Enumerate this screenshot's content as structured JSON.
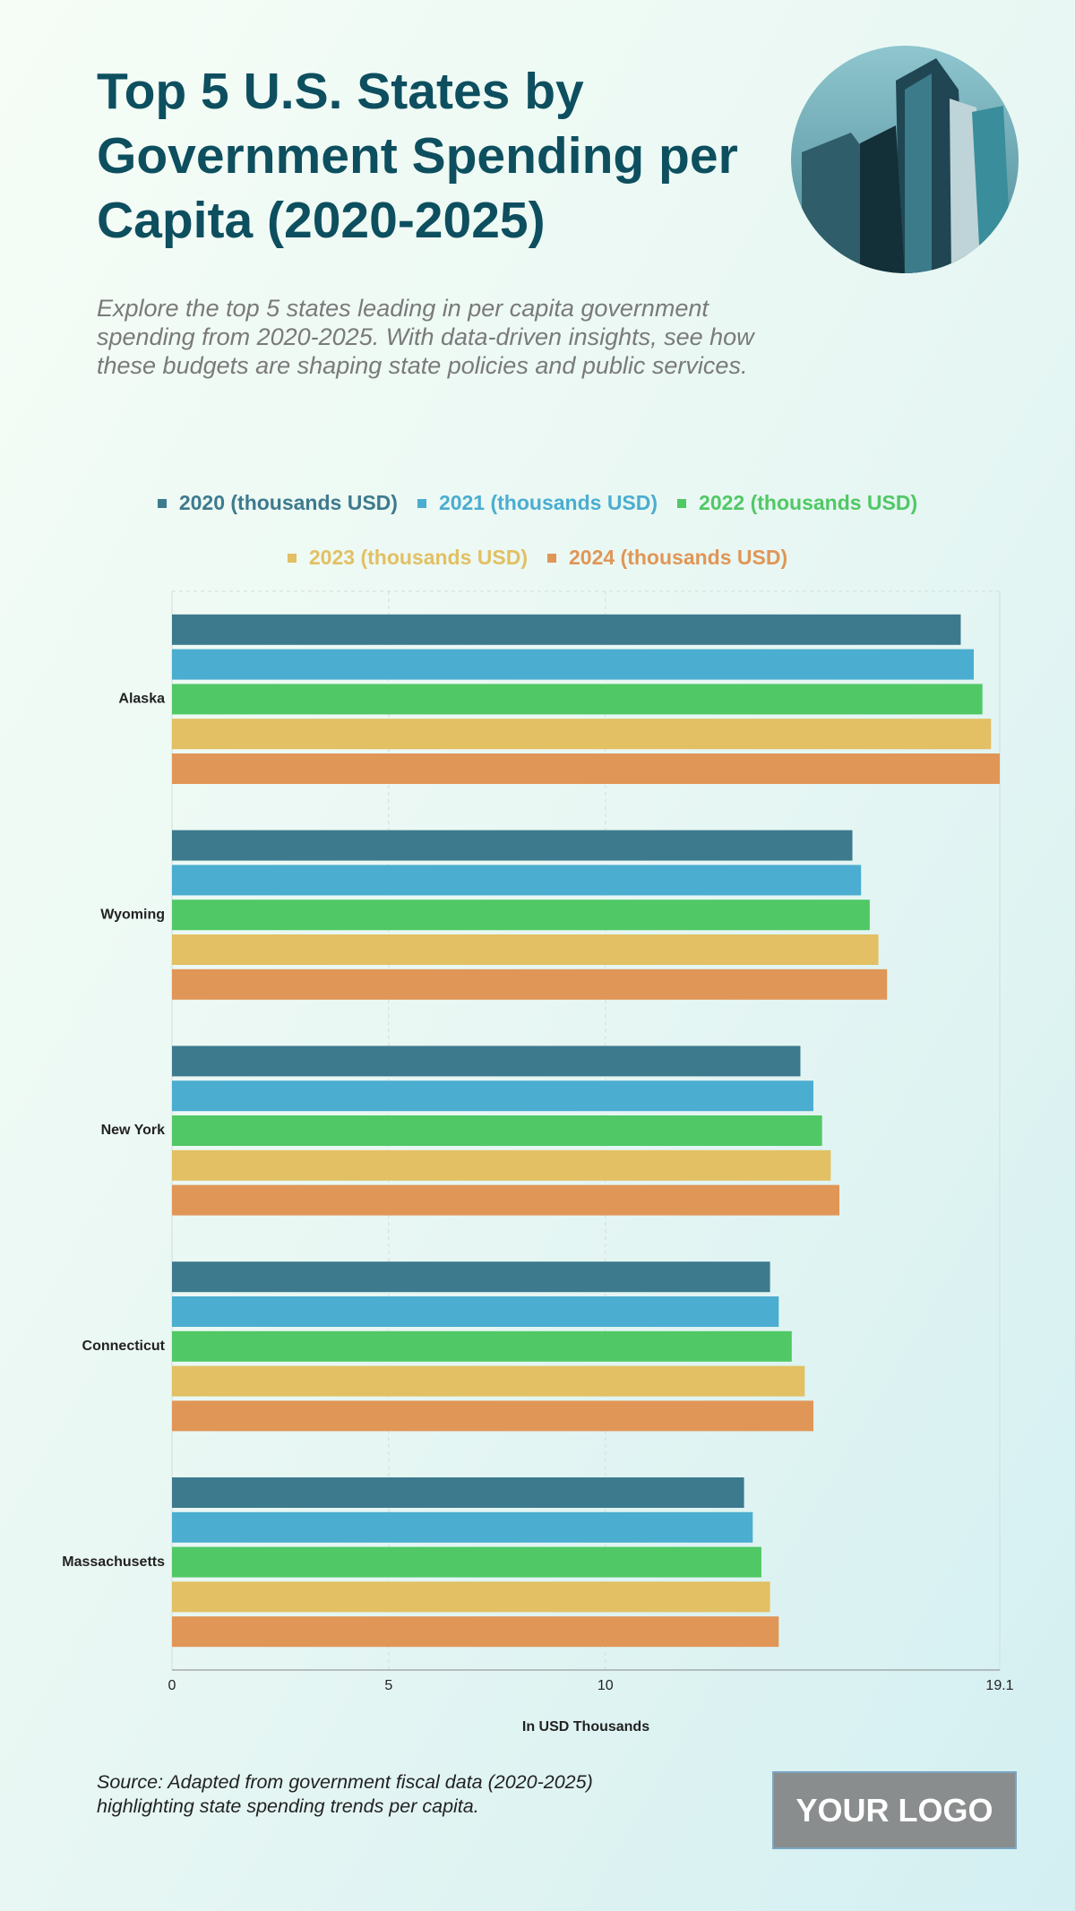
{
  "chart_data": {
    "type": "bar",
    "orientation": "horizontal",
    "title": "Top 5 U.S. States by Government Spending per Capita (2020-2025)",
    "subtitle": "Explore the top 5 states leading in per capita government spending from 2020-2025. With data-driven insights, see how these budgets are shaping state policies and public services.",
    "x_label": "In USD Thousands",
    "source": "Source: Adapted from government fiscal data (2020-2025) highlighting state spending trends per capita.",
    "logo_text": "YOUR LOGO",
    "categories": [
      "Alaska",
      "Wyoming",
      "New York",
      "Connecticut",
      "Massachusetts"
    ],
    "series": [
      {
        "name": "2020 (thousands USD)",
        "color": "#3d7a8e",
        "values": [
          18.2,
          15.7,
          14.5,
          13.8,
          13.2
        ]
      },
      {
        "name": "2021 (thousands USD)",
        "color": "#4badd0",
        "values": [
          18.5,
          15.9,
          14.8,
          14.0,
          13.4
        ]
      },
      {
        "name": "2022 (thousands USD)",
        "color": "#50c865",
        "values": [
          18.7,
          16.1,
          15.0,
          14.3,
          13.6
        ]
      },
      {
        "name": "2023 (thousands USD)",
        "color": "#e2c063",
        "values": [
          18.9,
          16.3,
          15.2,
          14.6,
          13.8
        ]
      },
      {
        "name": "2024 (thousands USD)",
        "color": "#e09656",
        "values": [
          19.1,
          16.5,
          15.4,
          14.8,
          14.0
        ]
      }
    ],
    "xlim": [
      0,
      19.1
    ],
    "xticks": [
      0,
      5,
      10,
      19.1
    ],
    "grid": true
  }
}
